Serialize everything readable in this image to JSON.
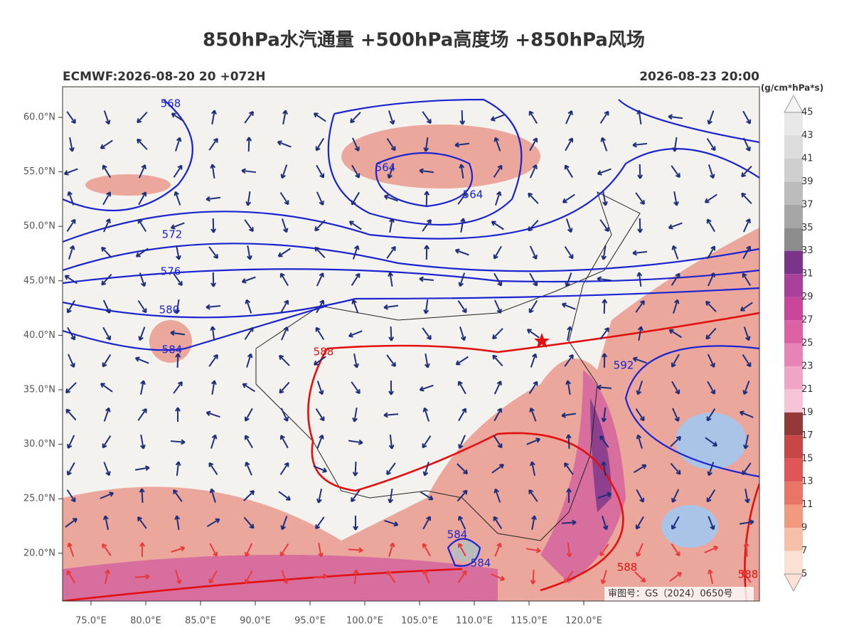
{
  "header": {
    "title": "850hPa水汽通量 +500hPa高度场 +850hPa风场",
    "left": "ECMWF:2026-08-20 20 +072H",
    "right": "2026-08-23 20:00"
  },
  "map": {
    "lat_labels": [
      "60.0°N",
      "55.0°N",
      "50.0°N",
      "45.0°N",
      "40.0°N",
      "35.0°N",
      "30.0°N",
      "25.0°N",
      "20.0°N"
    ],
    "lon_labels": [
      "75.0°E",
      "80.0°E",
      "85.0°E",
      "90.0°E",
      "95.0°E",
      "100.0°E",
      "105.0°E",
      "110.0°E",
      "115.0°E",
      "120.0°E"
    ],
    "contour_labels": [
      "568",
      "564",
      "564",
      "572",
      "576",
      "580",
      "584",
      "588",
      "592",
      "584",
      "584",
      "588",
      "588"
    ],
    "approval": "审图号：GS（2024）0650号"
  },
  "colorbar": {
    "unit": "(g/cm*hPa*s)",
    "ticks": [
      45,
      43,
      41,
      39,
      37,
      35,
      33,
      31,
      29,
      27,
      25,
      23,
      21,
      19,
      17,
      15,
      13,
      11,
      9,
      7,
      5
    ],
    "colors": [
      "#e8e8e8",
      "#dcdcdc",
      "#cfcfcf",
      "#bcbcbc",
      "#a6a6a6",
      "#8c8c8c",
      "#7a348a",
      "#a8409b",
      "#c8479b",
      "#dd62a5",
      "#e883b5",
      "#f0a5c6",
      "#f5c4d6",
      "#953838",
      "#c94646",
      "#e05656",
      "#ea7566",
      "#f19a80",
      "#f6bfa8",
      "#fbe0d4"
    ]
  }
}
